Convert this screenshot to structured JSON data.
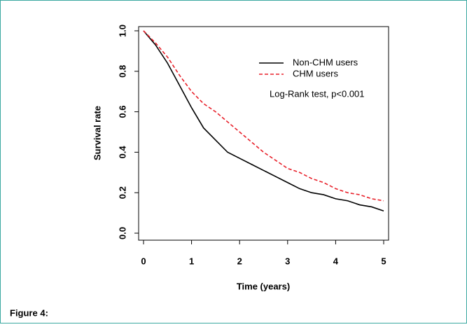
{
  "chart_data": {
    "type": "line",
    "xlabel": "Time (years)",
    "ylabel": "Survival rate",
    "x": [
      0,
      0.25,
      0.5,
      0.75,
      1,
      1.25,
      1.5,
      1.75,
      2,
      2.25,
      2.5,
      2.75,
      3,
      3.25,
      3.5,
      3.75,
      4,
      4.25,
      4.5,
      4.75,
      5
    ],
    "series": [
      {
        "name": "Non-CHM users",
        "color": "#000000",
        "dash": false,
        "values": [
          1.0,
          0.93,
          0.84,
          0.73,
          0.62,
          0.52,
          0.46,
          0.4,
          0.37,
          0.34,
          0.31,
          0.28,
          0.25,
          0.22,
          0.2,
          0.19,
          0.17,
          0.16,
          0.14,
          0.13,
          0.11
        ]
      },
      {
        "name": "CHM users",
        "color": "#e8202a",
        "dash": true,
        "values": [
          1.0,
          0.94,
          0.87,
          0.78,
          0.7,
          0.64,
          0.6,
          0.55,
          0.5,
          0.45,
          0.4,
          0.36,
          0.32,
          0.3,
          0.27,
          0.25,
          0.22,
          0.2,
          0.19,
          0.17,
          0.16
        ]
      }
    ],
    "annotation": "Log-Rank test, p<0.001",
    "xlim": [
      0,
      5
    ],
    "xticks": [
      0,
      1,
      2,
      3,
      4,
      5
    ],
    "ylim": [
      0,
      1
    ],
    "yticks": [
      {
        "value": 0,
        "label": "0.0"
      },
      0.2,
      0.4,
      0.6,
      0.8,
      {
        "value": 1,
        "label": "1.0"
      }
    ]
  },
  "caption": "Figure 4:"
}
